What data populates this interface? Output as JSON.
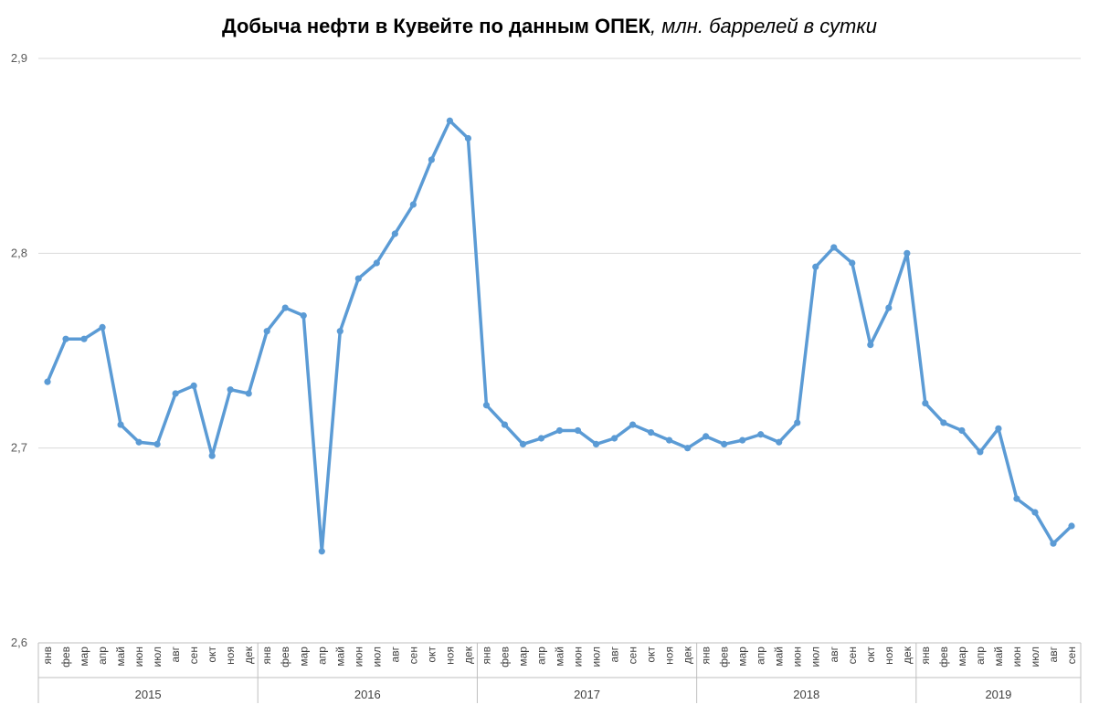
{
  "chart_data": {
    "type": "line",
    "title": "Добыча нефти в Кувейте по данным ОПЕК",
    "subtitle": "млн. баррелей в сутки",
    "ylim": [
      2.6,
      2.9
    ],
    "yticks": [
      "2,6",
      "2,7",
      "2,8",
      "2,9"
    ],
    "ytick_values": [
      2.6,
      2.7,
      2.8,
      2.9
    ],
    "grid": true,
    "color": "#5B9BD5",
    "years": [
      {
        "label": "2015",
        "months": 12
      },
      {
        "label": "2016",
        "months": 12
      },
      {
        "label": "2017",
        "months": 12
      },
      {
        "label": "2018",
        "months": 12
      },
      {
        "label": "2019",
        "months": 9
      }
    ],
    "x": [
      "янв",
      "фев",
      "мар",
      "апр",
      "май",
      "июн",
      "июл",
      "авг",
      "сен",
      "окт",
      "ноя",
      "дек",
      "янв",
      "фев",
      "мар",
      "апр",
      "май",
      "июн",
      "июл",
      "авг",
      "сен",
      "окт",
      "ноя",
      "дек",
      "янв",
      "фев",
      "мар",
      "апр",
      "май",
      "июн",
      "июл",
      "авг",
      "сен",
      "окт",
      "ноя",
      "дек",
      "янв",
      "фев",
      "мар",
      "апр",
      "май",
      "июн",
      "июл",
      "авг",
      "сен",
      "окт",
      "ноя",
      "дек",
      "янв",
      "фев",
      "мар",
      "апр",
      "май",
      "июн",
      "июл",
      "авг",
      "сен"
    ],
    "values": [
      2.734,
      2.756,
      2.756,
      2.762,
      2.712,
      2.703,
      2.702,
      2.728,
      2.732,
      2.696,
      2.73,
      2.728,
      2.76,
      2.772,
      2.768,
      2.647,
      2.76,
      2.787,
      2.795,
      2.81,
      2.825,
      2.848,
      2.868,
      2.859,
      2.722,
      2.712,
      2.702,
      2.705,
      2.709,
      2.709,
      2.702,
      2.705,
      2.712,
      2.708,
      2.704,
      2.7,
      2.706,
      2.702,
      2.704,
      2.707,
      2.703,
      2.713,
      2.793,
      2.803,
      2.795,
      2.753,
      2.772,
      2.8,
      2.723,
      2.713,
      2.709,
      2.698,
      2.71,
      2.674,
      2.667,
      2.651,
      2.66
    ]
  }
}
